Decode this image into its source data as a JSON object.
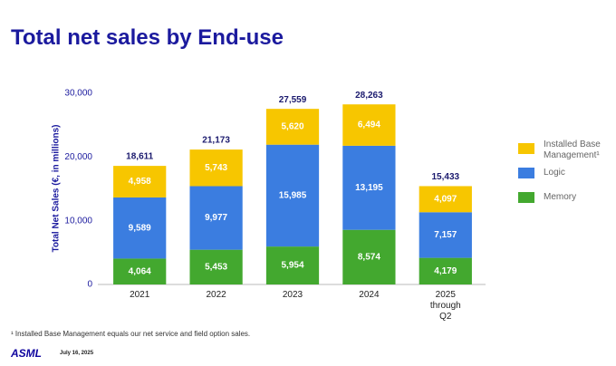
{
  "chart_data": {
    "type": "stacked-bar",
    "title": "Total net sales by End-use",
    "y_label": "Total Net Sales (€, in millions)",
    "categories": [
      "2021",
      "2022",
      "2023",
      "2024",
      "2025 through Q2"
    ],
    "series": [
      {
        "name": "Memory",
        "color": "#43a82f",
        "label_color": "#ffffff",
        "values": [
          4064,
          5453,
          5954,
          8574,
          4179
        ],
        "value_labels": [
          "4,064",
          "5,453",
          "5,954",
          "8,574",
          "4,179"
        ]
      },
      {
        "name": "Logic",
        "color": "#3b7de0",
        "label_color": "#ffffff",
        "values": [
          9589,
          9977,
          15985,
          13195,
          7157
        ],
        "value_labels": [
          "9,589",
          "9,977",
          "15,985",
          "13,195",
          "7,157"
        ]
      },
      {
        "name": "Installed Base Management¹",
        "color": "#f7c600",
        "label_color": "#ffffff",
        "values": [
          4958,
          5743,
          5620,
          6494,
          4097
        ],
        "value_labels": [
          "4,958",
          "5,743",
          "5,620",
          "6,494",
          "4,097"
        ]
      }
    ],
    "totals": {
      "values": [
        18611,
        21173,
        27559,
        28263,
        15433
      ],
      "value_labels": [
        "18,611",
        "21,173",
        "27,559",
        "28,263",
        "15,433"
      ]
    },
    "ylim": [
      0,
      30000
    ],
    "yticks": [
      0,
      {
        "value": 10000,
        "label": "10,000"
      },
      {
        "value": 20000,
        "label": "20,000"
      },
      {
        "value": 30000,
        "label": "30,000"
      }
    ],
    "grid": false,
    "legend": "right"
  },
  "footnote": "¹ Installed Base Management equals our net service and field option sales.",
  "footer": {
    "logo": "ASML",
    "date": "July 16, 2025"
  }
}
